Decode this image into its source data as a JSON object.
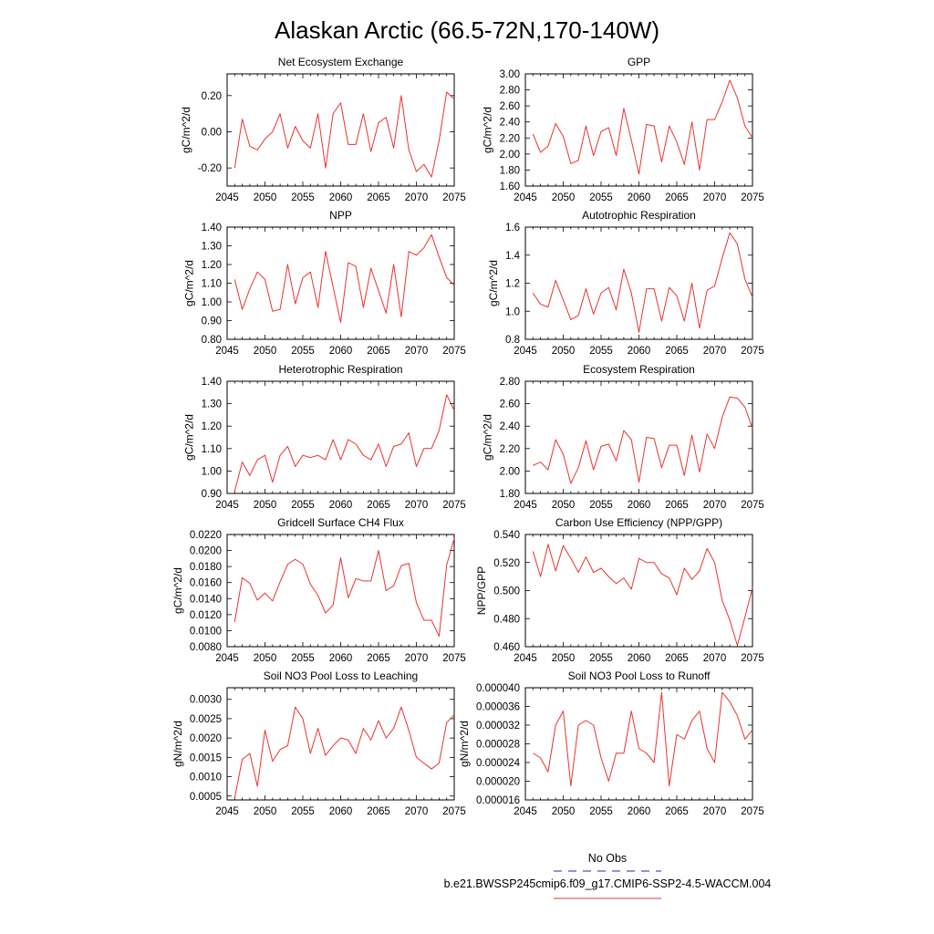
{
  "page_title": "Alaskan Arctic (66.5-72N,170-140W)",
  "legend": {
    "entries": [
      {
        "label": "No Obs",
        "color": "#4f4fd6",
        "style": "dashed"
      },
      {
        "label": "b.e21.BWSSP245cmip6.f09_g17.CMIP6-SSP2-4.5-WACCM.004",
        "color": "#e8332e",
        "style": "solid"
      }
    ]
  },
  "chart_data": [
    {
      "type": "line",
      "title": "Net Ecosystem Exchange",
      "ylabel": "gC/m^2/d",
      "xlabel": "",
      "xlim": [
        2045,
        2075
      ],
      "ylim": [
        -0.3,
        0.32
      ],
      "xticks": [
        "2045",
        "2050",
        "2055",
        "2060",
        "2065",
        "2070",
        "2075"
      ],
      "yticks": [
        "-0.20",
        "0.00",
        "0.20"
      ],
      "series_color": "#e8332e",
      "x": [
        2046,
        2047,
        2048,
        2049,
        2050,
        2051,
        2052,
        2053,
        2054,
        2055,
        2056,
        2057,
        2058,
        2059,
        2060,
        2061,
        2062,
        2063,
        2064,
        2065,
        2066,
        2067,
        2068,
        2069,
        2070,
        2071,
        2072,
        2073,
        2074,
        2075
      ],
      "y": [
        -0.2,
        0.07,
        -0.08,
        -0.1,
        -0.04,
        0.0,
        0.1,
        -0.09,
        0.03,
        -0.05,
        -0.09,
        0.1,
        -0.2,
        0.1,
        0.16,
        -0.07,
        -0.07,
        0.1,
        -0.11,
        0.05,
        0.08,
        -0.09,
        0.2,
        -0.1,
        -0.22,
        -0.18,
        -0.25,
        -0.05,
        0.22,
        0.18
      ]
    },
    {
      "type": "line",
      "title": "GPP",
      "ylabel": "gC/m^2/d",
      "xlabel": "",
      "xlim": [
        2045,
        2075
      ],
      "ylim": [
        1.6,
        3.0
      ],
      "xticks": [
        "2045",
        "2050",
        "2055",
        "2060",
        "2065",
        "2070",
        "2075"
      ],
      "yticks": [
        "1.60",
        "1.80",
        "2.00",
        "2.20",
        "2.40",
        "2.60",
        "2.80",
        "3.00"
      ],
      "series_color": "#e8332e",
      "x": [
        2046,
        2047,
        2048,
        2049,
        2050,
        2051,
        2052,
        2053,
        2054,
        2055,
        2056,
        2057,
        2058,
        2059,
        2060,
        2061,
        2062,
        2063,
        2064,
        2065,
        2066,
        2067,
        2068,
        2069,
        2070,
        2071,
        2072,
        2073,
        2074,
        2075
      ],
      "y": [
        2.25,
        2.02,
        2.1,
        2.38,
        2.22,
        1.88,
        1.92,
        2.35,
        1.98,
        2.28,
        2.33,
        1.98,
        2.57,
        2.17,
        1.75,
        2.37,
        2.35,
        1.9,
        2.35,
        2.15,
        1.87,
        2.4,
        1.8,
        2.43,
        2.43,
        2.65,
        2.92,
        2.7,
        2.35,
        2.2
      ]
    },
    {
      "type": "line",
      "title": "NPP",
      "ylabel": "gC/m^2/d",
      "xlabel": "",
      "xlim": [
        2045,
        2075
      ],
      "ylim": [
        0.8,
        1.4
      ],
      "xticks": [
        "2045",
        "2050",
        "2055",
        "2060",
        "2065",
        "2070",
        "2075"
      ],
      "yticks": [
        "0.80",
        "0.90",
        "1.00",
        "1.10",
        "1.20",
        "1.30",
        "1.40"
      ],
      "series_color": "#e8332e",
      "x": [
        2046,
        2047,
        2048,
        2049,
        2050,
        2051,
        2052,
        2053,
        2054,
        2055,
        2056,
        2057,
        2058,
        2059,
        2060,
        2061,
        2062,
        2063,
        2064,
        2065,
        2066,
        2067,
        2068,
        2069,
        2070,
        2071,
        2072,
        2073,
        2074,
        2075
      ],
      "y": [
        1.12,
        0.96,
        1.07,
        1.16,
        1.12,
        0.95,
        0.96,
        1.2,
        0.99,
        1.13,
        1.16,
        0.97,
        1.27,
        1.08,
        0.89,
        1.21,
        1.19,
        0.97,
        1.18,
        1.06,
        0.94,
        1.2,
        0.92,
        1.27,
        1.25,
        1.29,
        1.36,
        1.24,
        1.13,
        1.09
      ]
    },
    {
      "type": "line",
      "title": "Autotrophic Respiration",
      "ylabel": "gC/m^2/d",
      "xlabel": "",
      "xlim": [
        2045,
        2075
      ],
      "ylim": [
        0.8,
        1.6
      ],
      "xticks": [
        "2045",
        "2050",
        "2055",
        "2060",
        "2065",
        "2070",
        "2075"
      ],
      "yticks": [
        "0.8",
        "1.0",
        "1.2",
        "1.4",
        "1.6"
      ],
      "series_color": "#e8332e",
      "x": [
        2046,
        2047,
        2048,
        2049,
        2050,
        2051,
        2052,
        2053,
        2054,
        2055,
        2056,
        2057,
        2058,
        2059,
        2060,
        2061,
        2062,
        2063,
        2064,
        2065,
        2066,
        2067,
        2068,
        2069,
        2070,
        2071,
        2072,
        2073,
        2074,
        2075
      ],
      "y": [
        1.13,
        1.05,
        1.03,
        1.22,
        1.08,
        0.94,
        0.97,
        1.16,
        0.98,
        1.13,
        1.17,
        1.01,
        1.3,
        1.13,
        0.85,
        1.16,
        1.16,
        0.93,
        1.17,
        1.11,
        0.93,
        1.2,
        0.88,
        1.15,
        1.18,
        1.38,
        1.56,
        1.48,
        1.23,
        1.1
      ]
    },
    {
      "type": "line",
      "title": "Heterotrophic Respiration",
      "ylabel": "gC/m^2/d",
      "xlabel": "",
      "xlim": [
        2045,
        2075
      ],
      "ylim": [
        0.9,
        1.4
      ],
      "xticks": [
        "2045",
        "2050",
        "2055",
        "2060",
        "2065",
        "2070",
        "2075"
      ],
      "yticks": [
        "0.90",
        "1.00",
        "1.10",
        "1.20",
        "1.30",
        "1.40"
      ],
      "series_color": "#e8332e",
      "x": [
        2046,
        2047,
        2048,
        2049,
        2050,
        2051,
        2052,
        2053,
        2054,
        2055,
        2056,
        2057,
        2058,
        2059,
        2060,
        2061,
        2062,
        2063,
        2064,
        2065,
        2066,
        2067,
        2068,
        2069,
        2070,
        2071,
        2072,
        2073,
        2074,
        2075
      ],
      "y": [
        0.91,
        1.04,
        0.98,
        1.05,
        1.07,
        0.95,
        1.07,
        1.11,
        1.02,
        1.07,
        1.06,
        1.07,
        1.05,
        1.14,
        1.05,
        1.14,
        1.12,
        1.07,
        1.05,
        1.12,
        1.02,
        1.11,
        1.12,
        1.17,
        1.02,
        1.1,
        1.1,
        1.18,
        1.34,
        1.27
      ]
    },
    {
      "type": "line",
      "title": "Ecosystem Respiration",
      "ylabel": "gC/m^2/d",
      "xlabel": "",
      "xlim": [
        2045,
        2075
      ],
      "ylim": [
        1.8,
        2.8
      ],
      "xticks": [
        "2045",
        "2050",
        "2055",
        "2060",
        "2065",
        "2070",
        "2075"
      ],
      "yticks": [
        "1.80",
        "2.00",
        "2.20",
        "2.40",
        "2.60",
        "2.80"
      ],
      "series_color": "#e8332e",
      "x": [
        2046,
        2047,
        2048,
        2049,
        2050,
        2051,
        2052,
        2053,
        2054,
        2055,
        2056,
        2057,
        2058,
        2059,
        2060,
        2061,
        2062,
        2063,
        2064,
        2065,
        2066,
        2067,
        2068,
        2069,
        2070,
        2071,
        2072,
        2073,
        2074,
        2075
      ],
      "y": [
        2.05,
        2.08,
        2.01,
        2.28,
        2.15,
        1.89,
        2.03,
        2.27,
        2.01,
        2.22,
        2.24,
        2.09,
        2.36,
        2.28,
        1.9,
        2.3,
        2.29,
        2.03,
        2.23,
        2.23,
        1.96,
        2.32,
        1.99,
        2.33,
        2.2,
        2.48,
        2.66,
        2.65,
        2.57,
        2.38
      ]
    },
    {
      "type": "line",
      "title": "Gridcell Surface CH4 Flux",
      "ylabel": "gC/m^2/d",
      "xlabel": "",
      "xlim": [
        2045,
        2075
      ],
      "ylim": [
        0.008,
        0.022
      ],
      "xticks": [
        "2045",
        "2050",
        "2055",
        "2060",
        "2065",
        "2070",
        "2075"
      ],
      "yticks": [
        "0.0080",
        "0.0100",
        "0.0120",
        "0.0140",
        "0.0160",
        "0.0180",
        "0.0200",
        "0.0220"
      ],
      "series_color": "#e8332e",
      "x": [
        2046,
        2047,
        2048,
        2049,
        2050,
        2051,
        2052,
        2053,
        2054,
        2055,
        2056,
        2057,
        2058,
        2059,
        2060,
        2061,
        2062,
        2063,
        2064,
        2065,
        2066,
        2067,
        2068,
        2069,
        2070,
        2071,
        2072,
        2073,
        2074,
        2075
      ],
      "y": [
        0.0111,
        0.0166,
        0.0159,
        0.0138,
        0.0147,
        0.0137,
        0.0161,
        0.0183,
        0.0189,
        0.0183,
        0.0158,
        0.0144,
        0.0122,
        0.0132,
        0.0191,
        0.0141,
        0.0165,
        0.0162,
        0.0162,
        0.02,
        0.015,
        0.0156,
        0.0181,
        0.0184,
        0.0135,
        0.0113,
        0.0113,
        0.0093,
        0.0182,
        0.0215
      ]
    },
    {
      "type": "line",
      "title": "Carbon Use Efficiency (NPP/GPP)",
      "ylabel": "NPP/GPP",
      "xlabel": "",
      "xlim": [
        2045,
        2075
      ],
      "ylim": [
        0.46,
        0.54
      ],
      "xticks": [
        "2045",
        "2050",
        "2055",
        "2060",
        "2065",
        "2070",
        "2075"
      ],
      "yticks": [
        "0.460",
        "0.480",
        "0.500",
        "0.520",
        "0.540"
      ],
      "series_color": "#e8332e",
      "x": [
        2046,
        2047,
        2048,
        2049,
        2050,
        2051,
        2052,
        2053,
        2054,
        2055,
        2056,
        2057,
        2058,
        2059,
        2060,
        2061,
        2062,
        2063,
        2064,
        2065,
        2066,
        2067,
        2068,
        2069,
        2070,
        2071,
        2072,
        2073,
        2074,
        2075
      ],
      "y": [
        0.528,
        0.51,
        0.533,
        0.514,
        0.532,
        0.523,
        0.513,
        0.524,
        0.513,
        0.516,
        0.51,
        0.505,
        0.509,
        0.501,
        0.523,
        0.52,
        0.52,
        0.512,
        0.509,
        0.497,
        0.516,
        0.508,
        0.514,
        0.53,
        0.52,
        0.493,
        0.479,
        0.461,
        0.481,
        0.502
      ]
    },
    {
      "type": "line",
      "title": "Soil NO3 Pool Loss to Leaching",
      "ylabel": "gN/m^2/d",
      "xlabel": "",
      "xlim": [
        2045,
        2075
      ],
      "ylim": [
        0.0004,
        0.0033
      ],
      "xticks": [
        "2045",
        "2050",
        "2055",
        "2060",
        "2065",
        "2070",
        "2075"
      ],
      "yticks": [
        "0.0005",
        "0.0010",
        "0.0015",
        "0.0020",
        "0.0025",
        "0.0030"
      ],
      "series_color": "#e8332e",
      "x": [
        2046,
        2047,
        2048,
        2049,
        2050,
        2051,
        2052,
        2053,
        2054,
        2055,
        2056,
        2057,
        2058,
        2059,
        2060,
        2061,
        2062,
        2063,
        2064,
        2065,
        2066,
        2067,
        2068,
        2069,
        2070,
        2071,
        2072,
        2073,
        2074,
        2075
      ],
      "y": [
        0.00045,
        0.00145,
        0.0016,
        0.00075,
        0.0022,
        0.0014,
        0.0017,
        0.0018,
        0.0028,
        0.0025,
        0.0016,
        0.00225,
        0.00155,
        0.0018,
        0.002,
        0.00195,
        0.0016,
        0.00225,
        0.00195,
        0.00245,
        0.002,
        0.00225,
        0.0028,
        0.0022,
        0.0015,
        0.00135,
        0.0012,
        0.00135,
        0.0024,
        0.0026
      ]
    },
    {
      "type": "line",
      "title": "Soil NO3 Pool Loss to Runoff",
      "ylabel": "gN/m^2/d",
      "xlabel": "",
      "xlim": [
        2045,
        2075
      ],
      "ylim": [
        1.6e-05,
        4e-05
      ],
      "xticks": [
        "2045",
        "2050",
        "2055",
        "2060",
        "2065",
        "2070",
        "2075"
      ],
      "yticks": [
        "0.000016",
        "0.000020",
        "0.000024",
        "0.000028",
        "0.000032",
        "0.000036",
        "0.000040"
      ],
      "series_color": "#e8332e",
      "x": [
        2046,
        2047,
        2048,
        2049,
        2050,
        2051,
        2052,
        2053,
        2054,
        2055,
        2056,
        2057,
        2058,
        2059,
        2060,
        2061,
        2062,
        2063,
        2064,
        2065,
        2066,
        2067,
        2068,
        2069,
        2070,
        2071,
        2072,
        2073,
        2074,
        2075
      ],
      "y": [
        2.6e-05,
        2.5e-05,
        2.2e-05,
        3.2e-05,
        3.5e-05,
        1.9e-05,
        3.2e-05,
        3.3e-05,
        3.2e-05,
        2.5e-05,
        2e-05,
        2.6e-05,
        2.6e-05,
        3.5e-05,
        2.7e-05,
        2.6e-05,
        2.4e-05,
        3.9e-05,
        1.9e-05,
        3e-05,
        2.9e-05,
        3.3e-05,
        3.5e-05,
        2.7e-05,
        2.4e-05,
        3.9e-05,
        3.7e-05,
        3.4e-05,
        2.9e-05,
        3.1e-05
      ]
    }
  ]
}
